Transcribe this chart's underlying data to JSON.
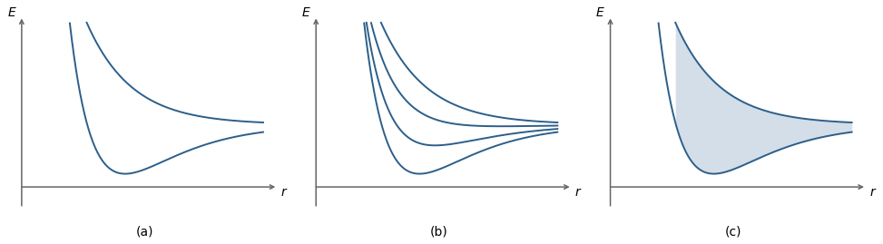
{
  "fig_width": 9.73,
  "fig_height": 2.69,
  "dpi": 100,
  "line_color": "#2c5f8a",
  "fill_color": "#b0c4d8",
  "fill_alpha": 0.55,
  "axis_color": "#666666",
  "label_fontsize": 10,
  "sublabel_fontsize": 10,
  "background_color": "#ffffff",
  "curve_lw": 1.4,
  "panels": [
    "(a)",
    "(b)",
    "(c)"
  ],
  "x_max": 1.0,
  "y_max": 1.0,
  "y_min": -0.12,
  "asymptote": 0.38
}
